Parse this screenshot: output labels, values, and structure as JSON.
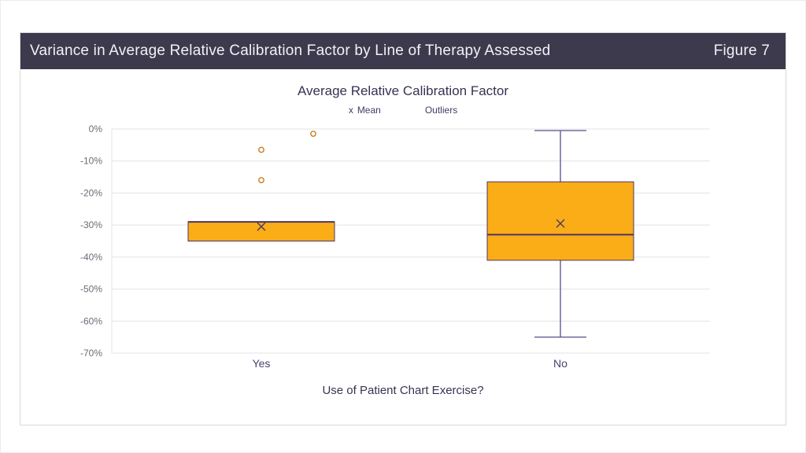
{
  "header": {
    "title": "Variance in Average Relative Calibration Factor by Line of Therapy Assessed",
    "figure_label": "Figure 7"
  },
  "legend": {
    "mean_symbol": "x",
    "mean_label": "Mean",
    "outliers_label": "Outliers"
  },
  "chart_data": {
    "type": "box",
    "title": "Average Relative Calibration Factor",
    "xlabel": "Use of Patient Chart Exercise?",
    "ylabel": "",
    "ylim": [
      -70,
      0
    ],
    "grid": true,
    "legend_position": "top",
    "y_ticks": [
      {
        "value": 0,
        "label": "0%"
      },
      {
        "value": -10,
        "label": "-10%"
      },
      {
        "value": -20,
        "label": "-20%"
      },
      {
        "value": -30,
        "label": "-30%"
      },
      {
        "value": -40,
        "label": "-40%"
      },
      {
        "value": -50,
        "label": "-50%"
      },
      {
        "value": -60,
        "label": "-60%"
      },
      {
        "value": -70,
        "label": "-70%"
      }
    ],
    "categories": [
      "Yes",
      "No"
    ],
    "series": [
      {
        "category": "Yes",
        "whisker_low": -35,
        "q1": -35,
        "median": -29,
        "q3": -29,
        "whisker_high": -29,
        "mean": -30.5,
        "outliers": [
          {
            "value": -1.5,
            "dx": 66
          },
          {
            "value": -6.5,
            "dx": 0
          },
          {
            "value": -16,
            "dx": 0
          }
        ]
      },
      {
        "category": "No",
        "whisker_low": -65,
        "q1": -41,
        "median": -33,
        "q3": -16.5,
        "whisker_high": -0.5,
        "mean": -29.5,
        "outliers": []
      }
    ],
    "colors": {
      "box_fill": "#FBAD18",
      "box_stroke": "#4d3462",
      "median": "#4d3462",
      "whisker": "#5b4b8a",
      "outlier": "#c67e1c",
      "grid": "#e3e3e6",
      "mean_marker": "#4a3b63",
      "tick_text": "#6d6a78",
      "category_text": "#4c4170"
    }
  }
}
